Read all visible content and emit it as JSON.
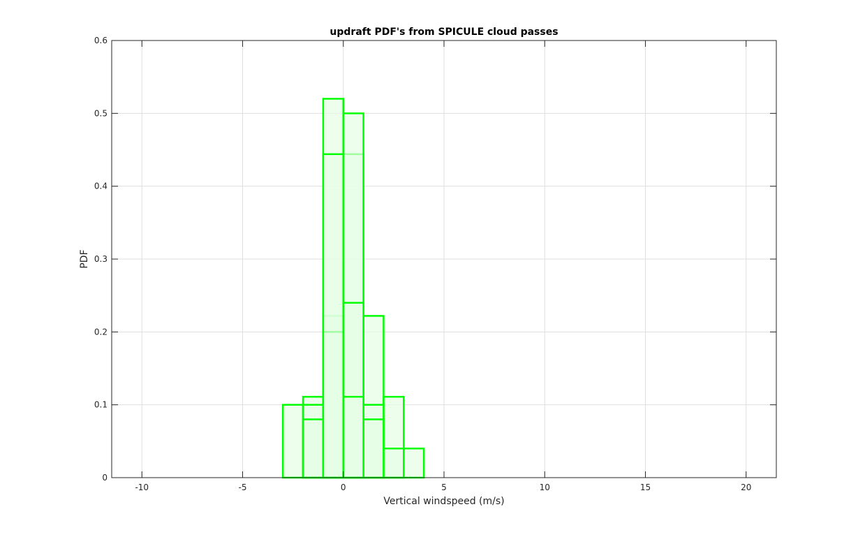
{
  "chart_data": {
    "type": "bar",
    "title": "updraft PDF's from SPICULE cloud passes",
    "xlabel": "Vertical windspeed (m/s)",
    "ylabel": "PDF",
    "xlim": [
      -11.5,
      21.5
    ],
    "ylim": [
      0,
      0.6
    ],
    "xticks": [
      -10,
      -5,
      0,
      5,
      10,
      15,
      20
    ],
    "xtick_labels": [
      "-10",
      "-5",
      "0",
      "5",
      "10",
      "15",
      "20"
    ],
    "yticks": [
      0,
      0.1,
      0.2,
      0.3,
      0.4,
      0.5,
      0.6
    ],
    "ytick_labels": [
      "0",
      "0.1",
      "0.2",
      "0.3",
      "0.4",
      "0.5",
      "0.6"
    ],
    "grid": true,
    "bin_edges": [
      -10,
      -9,
      -8,
      -7,
      -6,
      -5,
      -4,
      -3,
      -2,
      -1,
      0,
      1,
      2,
      3,
      4,
      5,
      6,
      7,
      8,
      9,
      10,
      11,
      12,
      13,
      14,
      15,
      16,
      17,
      18,
      19,
      20
    ],
    "series": [
      {
        "color": "#00ff00",
        "fill": "#e6fde6",
        "values": [
          0,
          0,
          0,
          0,
          0,
          0,
          0,
          0,
          0.111,
          0.222,
          0.444,
          0.222,
          0.111,
          0,
          0,
          0,
          0,
          0,
          0,
          0,
          0,
          0,
          0,
          0,
          0,
          0,
          0,
          0,
          0,
          0
        ]
      },
      {
        "color": "#00ff00",
        "fill": "#e6fde6",
        "values": [
          0,
          0,
          0,
          0,
          0,
          0,
          0,
          0.1,
          0.1,
          0.52,
          0.5,
          0.1,
          0.04,
          0.04,
          0,
          0,
          0,
          0,
          0,
          0,
          0,
          0,
          0,
          0,
          0,
          0,
          0,
          0,
          0,
          0
        ]
      },
      {
        "color": "#00ff00",
        "fill": "#e6fde6",
        "values": [
          0,
          0,
          0,
          0,
          0,
          0,
          0,
          0,
          0.08,
          0.2,
          0.24,
          0.08,
          0,
          0,
          0,
          0,
          0,
          0,
          0,
          0,
          0,
          0,
          0,
          0,
          0,
          0,
          0,
          0,
          0,
          0
        ]
      },
      {
        "color": "#00ff00",
        "fill": "#e6fde6",
        "values": [
          0,
          0,
          0,
          0,
          0,
          0,
          0,
          0,
          0,
          0.444,
          0.111,
          0,
          0,
          0,
          0,
          0,
          0,
          0,
          0,
          0,
          0,
          0,
          0,
          0,
          0,
          0,
          0,
          0,
          0,
          0
        ]
      }
    ]
  }
}
